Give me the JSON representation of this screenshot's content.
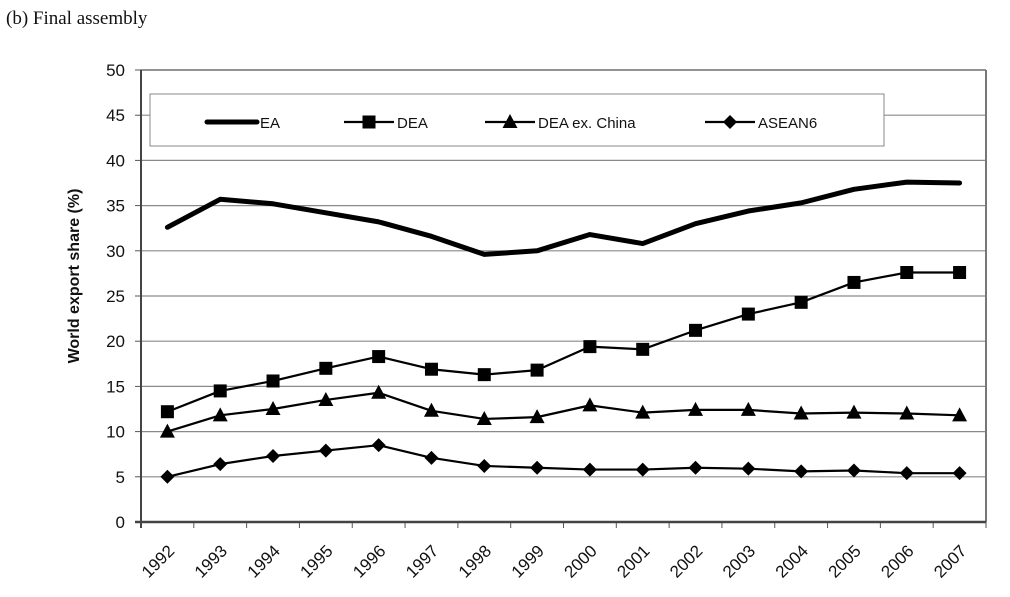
{
  "caption": "(b)  Final assembly",
  "chart_data": {
    "type": "line",
    "title": "",
    "xlabel": "",
    "ylabel": "World export share (%)",
    "ylim": [
      0,
      50
    ],
    "yticks": [
      0,
      5,
      10,
      15,
      20,
      25,
      30,
      35,
      40,
      45,
      50
    ],
    "grid": true,
    "legend_position": "top-inside",
    "categories": [
      "1992",
      "1993",
      "1994",
      "1995",
      "1996",
      "1997",
      "1998",
      "1999",
      "2000",
      "2001",
      "2002",
      "2003",
      "2004",
      "2005",
      "2006",
      "2007"
    ],
    "series": [
      {
        "name": "EA",
        "marker": "none",
        "line": "thick",
        "values": [
          32.6,
          35.7,
          35.2,
          34.2,
          33.2,
          31.6,
          29.6,
          30.0,
          31.8,
          30.8,
          33.0,
          34.4,
          35.3,
          36.8,
          37.6,
          37.5
        ]
      },
      {
        "name": "DEA",
        "marker": "square",
        "line": "normal",
        "values": [
          12.2,
          14.5,
          15.6,
          17.0,
          18.3,
          16.9,
          16.3,
          16.8,
          19.4,
          19.1,
          21.2,
          23.0,
          24.3,
          26.5,
          27.6,
          27.6
        ]
      },
      {
        "name": "DEA ex. China",
        "marker": "triangle",
        "line": "normal",
        "values": [
          10.0,
          11.8,
          12.5,
          13.5,
          14.3,
          12.3,
          11.4,
          11.6,
          12.9,
          12.1,
          12.4,
          12.4,
          12.0,
          12.1,
          12.0,
          11.8
        ]
      },
      {
        "name": "ASEAN6",
        "marker": "diamond",
        "line": "normal",
        "values": [
          5.0,
          6.4,
          7.3,
          7.9,
          8.5,
          7.1,
          6.2,
          6.0,
          5.8,
          5.8,
          6.0,
          5.9,
          5.6,
          5.7,
          5.4,
          5.4
        ]
      }
    ]
  }
}
